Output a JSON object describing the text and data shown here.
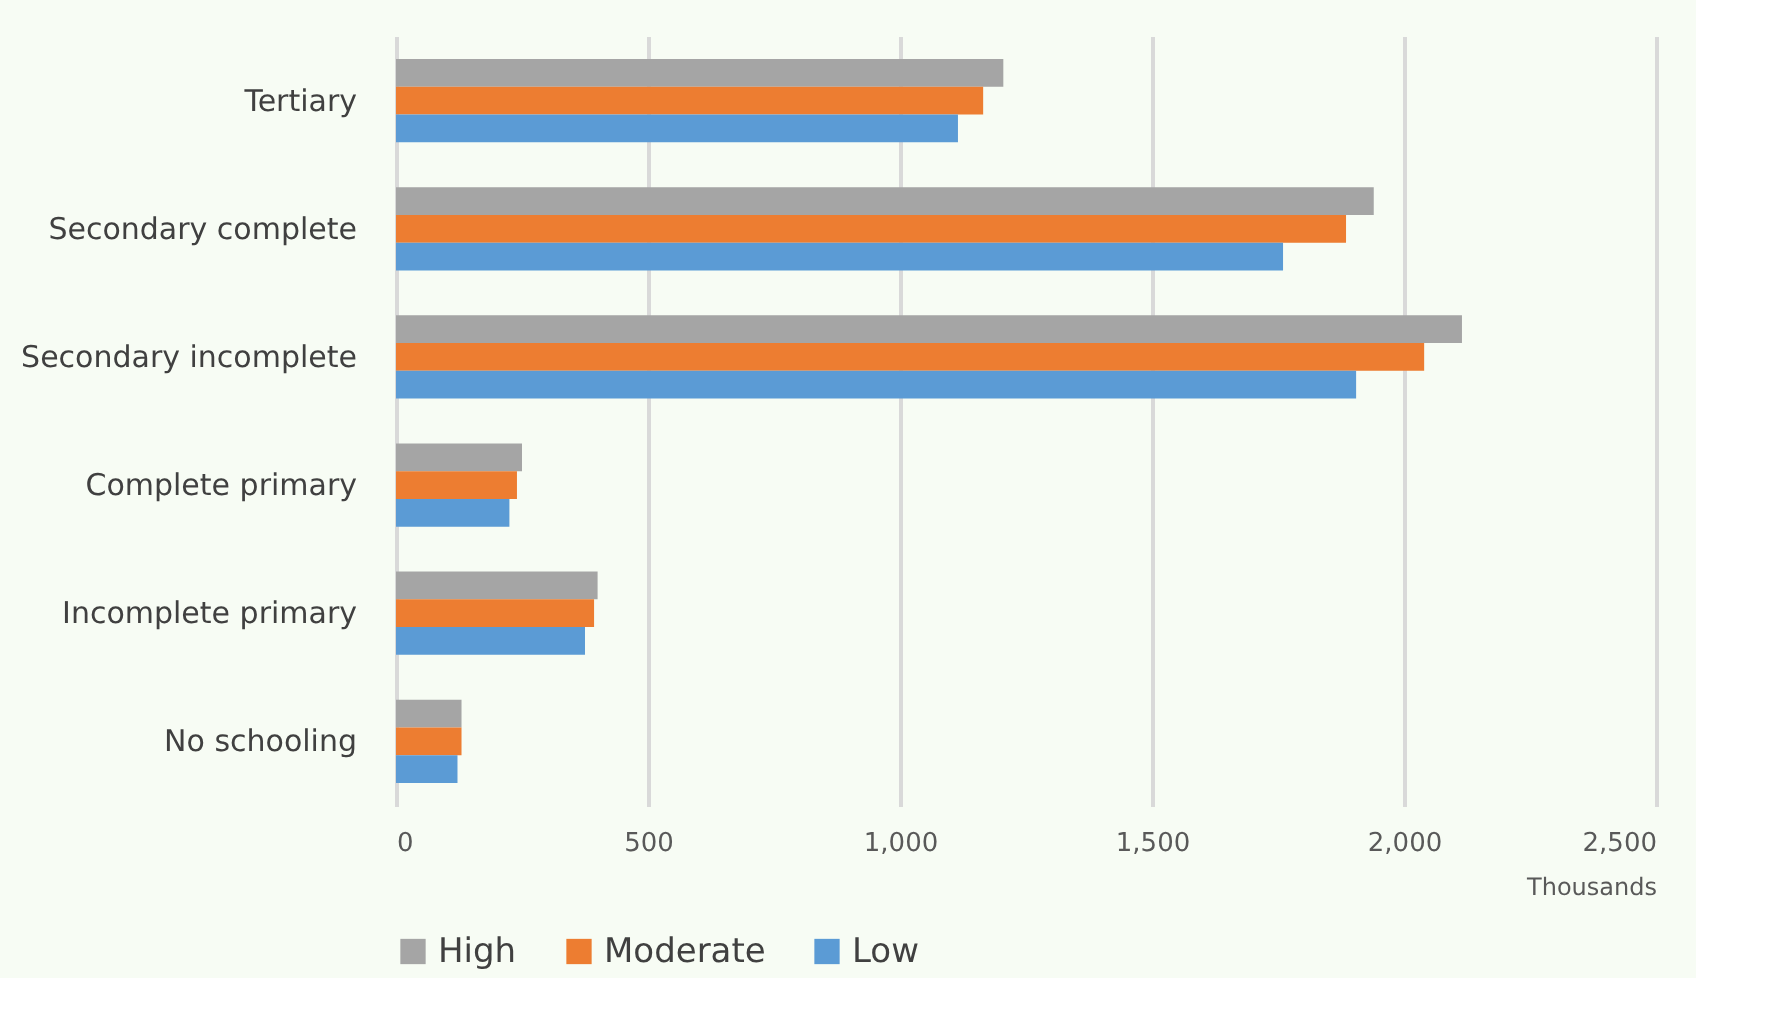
{
  "chart_data": {
    "type": "bar",
    "orientation": "horizontal",
    "xlabel": "Thousands",
    "categories": [
      "Tertiary",
      "Secondary complete",
      "Secondary incomplete",
      "Complete primary",
      "Incomplete primary",
      "No schooling"
    ],
    "series": [
      {
        "name": "High",
        "color": "#a5a5a5",
        "values": [
          1205,
          1940,
          2115,
          250,
          400,
          130
        ]
      },
      {
        "name": "Moderate",
        "color": "#ed7d31",
        "values": [
          1165,
          1885,
          2040,
          240,
          393,
          130
        ]
      },
      {
        "name": "Low",
        "color": "#5b9bd5",
        "values": [
          1115,
          1760,
          1905,
          225,
          375,
          122
        ]
      }
    ],
    "xlim": [
      0,
      2500
    ],
    "xticks": [
      0,
      {
        "value": 500,
        "label": "500"
      },
      {
        "value": 1000,
        "label": "1,000"
      },
      {
        "value": 1500,
        "label": "1,500"
      },
      {
        "value": 2000,
        "label": "2,000"
      },
      {
        "value": 2500,
        "label": "2,500"
      }
    ],
    "grid": "x",
    "legend": "bottom"
  }
}
